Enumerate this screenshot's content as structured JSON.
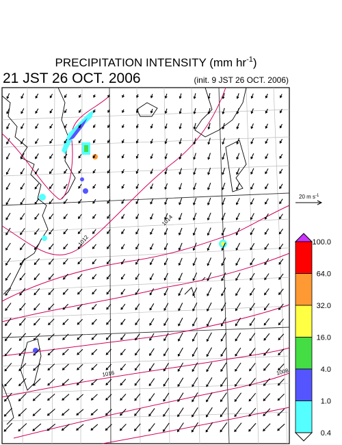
{
  "header": {
    "title": "PRECIPITATION INTENSITY (mm hr",
    "title_exponent": "-1",
    "title_end": ")",
    "valid_time": "21 JST 26 OCT. 2006",
    "init_time": "(init. 9 JST 26 OCT. 2006)"
  },
  "wind_reference": {
    "label": "20 m s",
    "exponent": "-1"
  },
  "colorbar": {
    "labels": [
      "100.0",
      "64.0",
      "32.0",
      "16.0",
      "4.0",
      "1.0",
      "0.4"
    ],
    "colors": [
      "#ff0000",
      "#ff9933",
      "#ffff44",
      "#44dd44",
      "#5555ff",
      "#55ffff"
    ],
    "over_color": "#cc33ff",
    "under_color": "#ffffff"
  },
  "isobar_labels": [
    "1012",
    "1014",
    "1016",
    "1008"
  ]
}
